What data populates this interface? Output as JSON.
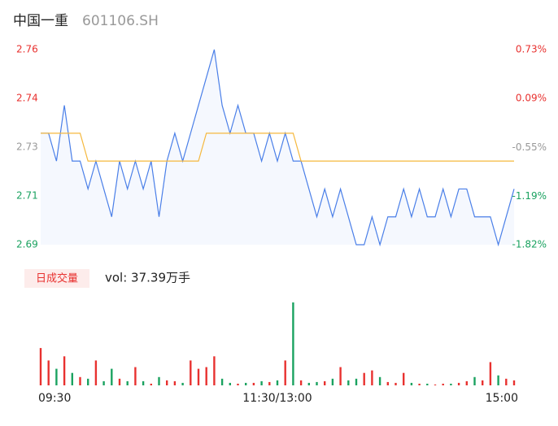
{
  "chart_data": {
    "type": "intraday",
    "title": "中国一重",
    "subtitle": "601106.SH",
    "volume_label": "日成交量",
    "volume_text": "vol: 37.39万手",
    "xlim": [
      0,
      60
    ],
    "xticks": [
      {
        "value": 0,
        "label": "09:30"
      },
      {
        "value": 30,
        "label": "11:30/13:00"
      },
      {
        "value": 60,
        "label": "15:00"
      }
    ],
    "ylim": [
      2.69,
      2.76
    ],
    "yticks": [
      2.76,
      {
        "value": 2.7425,
        "label": "2.74"
      },
      {
        "value": 2.725,
        "label": "2.73"
      },
      {
        "value": 2.7075,
        "label": "2.71"
      },
      2.69
    ],
    "y2lim": [
      -1.82,
      0.73
    ],
    "y2ticks": [
      {
        "value": 0.73,
        "label": "0.73%"
      },
      {
        "value": 0.09,
        "label": "0.09%"
      },
      {
        "value": -0.55,
        "label": "-0.55%"
      },
      {
        "value": -1.19,
        "label": "-1.19%"
      },
      {
        "value": -1.82,
        "label": "-1.82%"
      }
    ],
    "tick_colors": [
      "#e8312f",
      "#e8312f",
      "#999999",
      "#1aa260",
      "#1aa260"
    ],
    "series": [
      {
        "name": "price",
        "color": "#4a7fe8",
        "values": [
          2.73,
          2.73,
          2.72,
          2.74,
          2.72,
          2.72,
          2.71,
          2.72,
          2.71,
          2.7,
          2.72,
          2.71,
          2.72,
          2.71,
          2.72,
          2.7,
          2.72,
          2.73,
          2.72,
          2.73,
          2.74,
          2.75,
          2.76,
          2.74,
          2.73,
          2.74,
          2.73,
          2.73,
          2.72,
          2.73,
          2.72,
          2.73,
          2.72,
          2.72,
          2.71,
          2.7,
          2.71,
          2.7,
          2.71,
          2.7,
          2.69,
          2.69,
          2.7,
          2.69,
          2.7,
          2.7,
          2.71,
          2.7,
          2.71,
          2.7,
          2.7,
          2.71,
          2.7,
          2.71,
          2.71,
          2.7,
          2.7,
          2.7,
          2.69,
          2.7,
          2.71
        ]
      },
      {
        "name": "average",
        "color": "#f5b83d",
        "values": [
          2.73,
          2.73,
          2.73,
          2.73,
          2.73,
          2.73,
          2.72,
          2.72,
          2.72,
          2.72,
          2.72,
          2.72,
          2.72,
          2.72,
          2.72,
          2.72,
          2.72,
          2.72,
          2.72,
          2.72,
          2.72,
          2.73,
          2.73,
          2.73,
          2.73,
          2.73,
          2.73,
          2.73,
          2.73,
          2.73,
          2.73,
          2.73,
          2.73,
          2.72,
          2.72,
          2.72,
          2.72,
          2.72,
          2.72,
          2.72,
          2.72,
          2.72,
          2.72,
          2.72,
          2.72,
          2.72,
          2.72,
          2.72,
          2.72,
          2.72,
          2.72,
          2.72,
          2.72,
          2.72,
          2.72,
          2.72,
          2.72,
          2.72,
          2.72,
          2.72,
          2.72
        ]
      }
    ],
    "volume": {
      "up_color": "#e8312f",
      "down_color": "#1aa260",
      "ylim": [
        0,
        100
      ],
      "values": [
        45,
        30,
        20,
        35,
        15,
        10,
        8,
        30,
        5,
        20,
        8,
        5,
        22,
        5,
        2,
        10,
        6,
        5,
        3,
        30,
        20,
        22,
        35,
        8,
        3,
        2,
        3,
        3,
        5,
        4,
        6,
        30,
        100,
        6,
        3,
        4,
        5,
        8,
        22,
        6,
        8,
        15,
        18,
        10,
        4,
        3,
        15,
        3,
        2,
        2,
        1,
        2,
        2,
        3,
        5,
        10,
        6,
        28,
        12,
        8,
        6
      ]
    }
  }
}
